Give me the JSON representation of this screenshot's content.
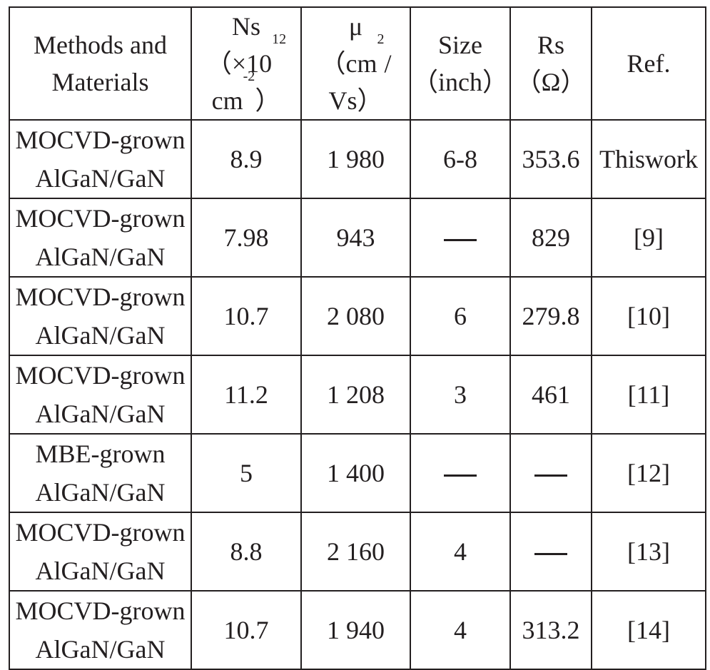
{
  "table": {
    "headers": [
      {
        "lines": [
          "Methods and",
          "Materials"
        ]
      },
      {
        "lines": [
          "Ns",
          "（×10|12|",
          "cm|-2|）"
        ]
      },
      {
        "lines": [
          "μ",
          "（cm|2|/",
          "Vs）"
        ]
      },
      {
        "lines": [
          "Size",
          "（inch）"
        ]
      },
      {
        "lines": [
          "Rs",
          "（Ω）"
        ]
      },
      {
        "lines": [
          "Ref."
        ]
      }
    ],
    "rows": [
      {
        "method": [
          "MOCVD-grown",
          "AlGaN/GaN"
        ],
        "ns": "8.9",
        "mu": "1 980",
        "size": "6-8",
        "rs": "353.6",
        "ref": "Thiswork"
      },
      {
        "method": [
          "MOCVD-grown",
          "AlGaN/GaN"
        ],
        "ns": "7.98",
        "mu": "943",
        "size": "—",
        "rs": "829",
        "ref": "[9]"
      },
      {
        "method": [
          "MOCVD-grown",
          "AlGaN/GaN"
        ],
        "ns": "10.7",
        "mu": "2 080",
        "size": "6",
        "rs": "279.8",
        "ref": "[10]"
      },
      {
        "method": [
          "MOCVD-grown",
          "AlGaN/GaN"
        ],
        "ns": "11.2",
        "mu": "1 208",
        "size": "3",
        "rs": "461",
        "ref": "[11]"
      },
      {
        "method": [
          "MBE-grown",
          "AlGaN/GaN"
        ],
        "ns": "5",
        "mu": "1 400",
        "size": "—",
        "rs": "—",
        "ref": "[12]"
      },
      {
        "method": [
          "MOCVD-grown",
          "AlGaN/GaN"
        ],
        "ns": "8.8",
        "mu": "2 160",
        "size": "4",
        "rs": "—",
        "ref": "[13]"
      },
      {
        "method": [
          "MOCVD-grown",
          "AlGaN/GaN"
        ],
        "ns": "10.7",
        "mu": "1 940",
        "size": "4",
        "rs": "313.2",
        "ref": "[14]"
      }
    ]
  }
}
